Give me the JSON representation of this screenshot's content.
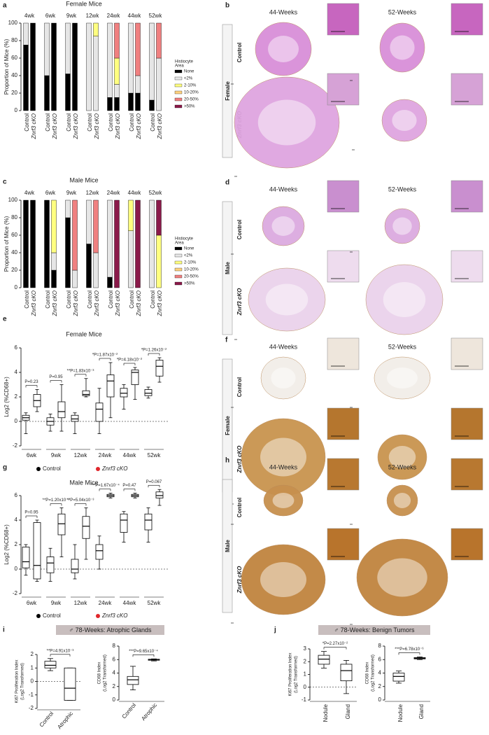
{
  "chart_data": [
    {
      "type": "stacked_bar",
      "panel": "a",
      "title": "Female Mice",
      "ylabel": "Proportion of Mice (%)",
      "ylim": [
        0,
        100
      ],
      "yticks": [
        0,
        20,
        40,
        60,
        80,
        100
      ],
      "timepoints": [
        "4wk",
        "6wk",
        "9wk",
        "12wk",
        "24wk",
        "44wk",
        "52wk"
      ],
      "categories": [
        "Control",
        "Znrf3 cKO",
        "Control",
        "Znrf3 cKO",
        "Control",
        "Znrf3 cKO",
        "Control",
        "Znrf3 cKO",
        "Control",
        "Znrf3 cKO",
        "Control",
        "Znrf3 cKO",
        "Control",
        "Znrf3 cKO"
      ],
      "legend_title": [
        "Histiocyte",
        "Area"
      ],
      "series": [
        {
          "name": "None",
          "color": "#000000",
          "values": [
            75,
            100,
            40,
            100,
            42,
            100,
            0,
            0,
            15,
            15,
            20,
            20,
            12,
            0
          ]
        },
        {
          "name": "<2%",
          "color": "#e6e6e6",
          "values": [
            25,
            0,
            60,
            0,
            58,
            0,
            100,
            85,
            85,
            15,
            80,
            20,
            88,
            60
          ]
        },
        {
          "name": "2-10%",
          "color": "#ffff80",
          "values": [
            0,
            0,
            0,
            0,
            0,
            0,
            0,
            15,
            0,
            30,
            0,
            0,
            0,
            0
          ]
        },
        {
          "name": "10-20%",
          "color": "#ffd27f",
          "values": [
            0,
            0,
            0,
            0,
            0,
            0,
            0,
            0,
            0,
            0,
            0,
            0,
            0,
            0
          ]
        },
        {
          "name": "20-50%",
          "color": "#f08080",
          "values": [
            0,
            0,
            0,
            0,
            0,
            0,
            0,
            0,
            0,
            40,
            0,
            60,
            0,
            40
          ]
        },
        {
          "name": ">50%",
          "color": "#8b1a4a",
          "values": [
            0,
            0,
            0,
            0,
            0,
            0,
            0,
            0,
            0,
            0,
            0,
            0,
            0,
            0
          ]
        }
      ]
    },
    {
      "type": "stacked_bar",
      "panel": "c",
      "title": "Male Mice",
      "ylabel": "Proportion of Mice (%)",
      "ylim": [
        0,
        100
      ],
      "yticks": [
        0,
        20,
        40,
        60,
        80,
        100
      ],
      "timepoints": [
        "4wk",
        "6wk",
        "9wk",
        "12wk",
        "24wk",
        "44wk",
        "52wk"
      ],
      "categories": [
        "Control",
        "Znrf3 cKO",
        "Control",
        "Znrf3 cKO",
        "Control",
        "Znrf3 cKO",
        "Control",
        "Znrf3 cKO",
        "Control",
        "Znrf3 cKO",
        "Control",
        "Znrf3 cKO",
        "Control",
        "Znrf3 cKO"
      ],
      "legend_title": [
        "Histiocyte",
        "Area"
      ],
      "series": [
        {
          "name": "None",
          "color": "#000000",
          "values": [
            100,
            100,
            100,
            20,
            80,
            0,
            50,
            0,
            12,
            0,
            0,
            0,
            0,
            0
          ]
        },
        {
          "name": "<2%",
          "color": "#e6e6e6",
          "values": [
            0,
            0,
            0,
            20,
            20,
            20,
            50,
            40,
            88,
            0,
            65,
            0,
            100,
            0
          ]
        },
        {
          "name": "2-10%",
          "color": "#ffff80",
          "values": [
            0,
            0,
            0,
            60,
            0,
            0,
            0,
            0,
            0,
            0,
            35,
            0,
            0,
            60
          ]
        },
        {
          "name": "10-20%",
          "color": "#ffd27f",
          "values": [
            0,
            0,
            0,
            0,
            0,
            0,
            0,
            0,
            0,
            0,
            0,
            0,
            0,
            0
          ]
        },
        {
          "name": "20-50%",
          "color": "#f08080",
          "values": [
            0,
            0,
            0,
            0,
            0,
            80,
            0,
            60,
            0,
            0,
            0,
            0,
            0,
            0
          ]
        },
        {
          "name": ">50%",
          "color": "#8b1a4a",
          "values": [
            0,
            0,
            0,
            0,
            0,
            0,
            0,
            0,
            0,
            100,
            0,
            100,
            0,
            40
          ]
        }
      ]
    },
    {
      "type": "box",
      "panel": "e",
      "title": "Female Mice",
      "ylabel": "Log2 (%CD68+)",
      "ylim": [
        -2,
        6
      ],
      "yticks": [
        -2,
        0,
        2,
        4,
        6
      ],
      "reference_line": 0,
      "categories": [
        "6wk",
        "9wk",
        "12wk",
        "24wk",
        "44wk",
        "52wk"
      ],
      "annotations": [
        "P=0.23",
        "P=0.95",
        "**P=1.83x10⁻³",
        "*P=1.87x10⁻²",
        "*P=4.18x10⁻²",
        "*P=1.26x10⁻²"
      ],
      "series": [
        {
          "name": "Control",
          "color": "#000000",
          "boxes": [
            [
              -1,
              0.1,
              0.3,
              0.5,
              0.7
            ],
            [
              -0.8,
              -0.3,
              0,
              0.3,
              0.6
            ],
            [
              -1,
              0,
              0.2,
              0.5,
              0.7
            ],
            [
              -1,
              0,
              1,
              1.5,
              2.7
            ],
            [
              1,
              2,
              2.3,
              2.7,
              3
            ],
            [
              1.9,
              2.1,
              2.3,
              2.6,
              2.8
            ]
          ]
        },
        {
          "name": "Znrf3 cKO",
          "color": "#e0262b",
          "boxes": [
            [
              0.8,
              1.2,
              1.7,
              2.2,
              2.6
            ],
            [
              -0.8,
              0.3,
              0.8,
              1.6,
              3
            ],
            [
              2,
              2.1,
              2.2,
              2.5,
              3.5
            ],
            [
              0.3,
              2,
              3.3,
              3.8,
              4.8
            ],
            [
              1.8,
              3,
              4,
              4.2,
              4.4
            ],
            [
              3.2,
              3.7,
              4.5,
              5,
              5.2
            ]
          ]
        }
      ]
    },
    {
      "type": "box",
      "panel": "g",
      "title": "Male Mice",
      "ylabel": "Log2 (%CD68+)",
      "ylim": [
        -2,
        6
      ],
      "yticks": [
        -2,
        0,
        2,
        4,
        6
      ],
      "reference_line": 0,
      "categories": [
        "6wk",
        "9wk",
        "12wk",
        "24wk",
        "44wk",
        "52wk"
      ],
      "annotations": [
        "P=0.95",
        "**P=1.20x10⁻³",
        "**P=5.04x10⁻³",
        "***P=1.67x10⁻⁴",
        "P=0.47",
        "P=0.067"
      ],
      "series": [
        {
          "name": "Control",
          "color": "#000000",
          "boxes": [
            [
              -0.5,
              0.1,
              0.6,
              1.8,
              2
            ],
            [
              -1,
              -0.3,
              0.5,
              1,
              1.7
            ],
            [
              -0.8,
              -0.3,
              0,
              0.8,
              2
            ],
            [
              0,
              0.8,
              1.5,
              2,
              2.7
            ],
            [
              2.2,
              3,
              4,
              4.5,
              4.7
            ],
            [
              2.2,
              3.2,
              4,
              4.5,
              5
            ]
          ]
        },
        {
          "name": "Znrf3 cKO",
          "color": "#e0262b",
          "boxes": [
            [
              -1,
              -0.8,
              0.3,
              3.8,
              4
            ],
            [
              1,
              2.8,
              3.7,
              4.5,
              5
            ],
            [
              0.8,
              2.5,
              3.5,
              4.3,
              5
            ],
            [
              5.8,
              5.9,
              6,
              6.1,
              6.2
            ],
            [
              5.8,
              5.9,
              6,
              6.1,
              6.2
            ],
            [
              5.2,
              5.8,
              6,
              6.3,
              6.5
            ]
          ]
        }
      ]
    },
    {
      "type": "box",
      "panel": "i",
      "header": "♂ 78-Weeks: Atrophic Glands",
      "ylabel": [
        "Ki67 Proliferation Index",
        "(Log2 Transformed)"
      ],
      "ylim": [
        -2,
        2
      ],
      "yticks": [
        -2,
        -1,
        0,
        1,
        2
      ],
      "reference_line": 0,
      "categories": [
        "Control",
        "Atrophic"
      ],
      "annotation": "**P=4.91x10⁻³",
      "boxes": [
        [
          0.8,
          1,
          1.2,
          1.5,
          1.7
        ],
        [
          -1.4,
          -1.4,
          -0.5,
          1,
          1
        ]
      ]
    },
    {
      "type": "box",
      "ylabel": [
        "CD68 Index",
        "(Log2 Transformed)"
      ],
      "ylim": [
        0,
        8
      ],
      "yticks": [
        0,
        2,
        4,
        6,
        8
      ],
      "categories": [
        "Control",
        "Atrophic"
      ],
      "annotation": "***P=9.65x10⁻⁴",
      "boxes": [
        [
          1.5,
          2.3,
          3,
          3.5,
          5
        ],
        [
          5.8,
          5.9,
          6,
          6.05,
          6.1
        ]
      ]
    },
    {
      "type": "box",
      "panel": "j",
      "header": "♂ 78-Weeks: Benign Tumors",
      "ylabel": [
        "Ki67 Proliferation Index",
        "(Log2 Transformed)"
      ],
      "ylim": [
        -1,
        3
      ],
      "yticks": [
        -1,
        0,
        1,
        2,
        3
      ],
      "reference_line": 0,
      "categories": [
        "Nodule",
        "Gland"
      ],
      "annotation": "*P=2.27x10⁻²",
      "boxes": [
        [
          1.5,
          1.8,
          2.2,
          2.5,
          2.8
        ],
        [
          -0.5,
          0.5,
          1.3,
          1.8,
          2.1
        ]
      ]
    },
    {
      "type": "box",
      "ylabel": [
        "CD68 Index",
        "(Log2 Transformed)"
      ],
      "ylim": [
        0,
        8
      ],
      "yticks": [
        0,
        2,
        4,
        6,
        8
      ],
      "categories": [
        "Nodule",
        "Gland"
      ],
      "annotation": "***P=6.78x10⁻⁶",
      "boxes": [
        [
          2.5,
          2.8,
          3.5,
          4,
          4.3
        ],
        [
          6,
          6.1,
          6.2,
          6.3,
          6.4
        ]
      ]
    }
  ],
  "image_panels": [
    {
      "panel": "b",
      "columns": [
        "44-Weeks",
        "52-Weeks"
      ],
      "group": "Female",
      "rows": [
        "Control",
        "Znrf3 cKO"
      ],
      "colors": {
        "tissue": [
          "#d98fd9",
          "#dfa5e0"
        ],
        "inset": [
          "#c766bf",
          "#d6a2d6"
        ]
      }
    },
    {
      "panel": "d",
      "columns": [
        "44-Weeks",
        "52-Weeks"
      ],
      "group": "Male",
      "rows": [
        "Control",
        "Znrf3 cKO"
      ],
      "colors": {
        "tissue": [
          "#dcaae0",
          "#ead2ec"
        ],
        "inset": [
          "#c98fcf",
          "#eedcee"
        ]
      }
    },
    {
      "panel": "f",
      "columns": [
        "44-Weeks",
        "52-Weeks"
      ],
      "group": "Female",
      "rows": [
        "Control",
        "Znrf3 cKO"
      ],
      "colors": {
        "tissue": [
          "#f2eee8",
          "#c9944f"
        ],
        "inset": [
          "#eee6dc",
          "#b5762e"
        ]
      }
    },
    {
      "panel": "h",
      "columns": [
        "44-Weeks",
        "52-Weeks"
      ],
      "group": "Male",
      "rows": [
        "Control",
        "Znrf3 cKO"
      ],
      "colors": {
        "tissue": [
          "#c7904e",
          "#c0843f"
        ],
        "inset": [
          "#b87830",
          "#b8742c"
        ]
      }
    }
  ]
}
